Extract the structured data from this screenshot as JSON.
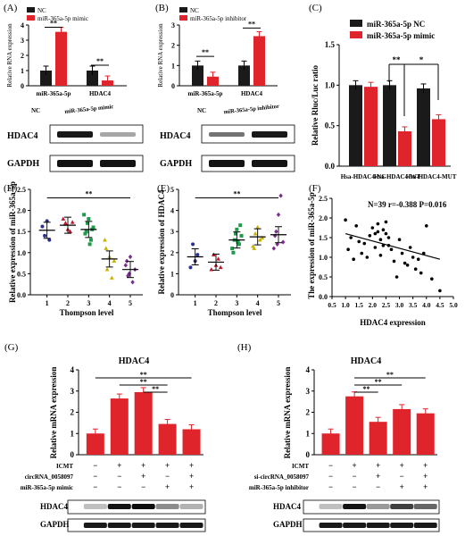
{
  "colors": {
    "nc": "#1a1a1a",
    "red": "#e0242b",
    "scatter": "#000000",
    "line": "#000000",
    "gapdh": "#222222"
  },
  "panel_labels": [
    "(A)",
    "(B)",
    "(C)",
    "(D)",
    "(E)",
    "(F)",
    "(G)",
    "(H)"
  ],
  "wb_labels": {
    "hdac4": "HDAC4",
    "gapdh": "GAPDH",
    "nc": "NC",
    "mimic": "miR-365a-5p mimic",
    "inhibitor": "miR-365a-5p inhibitor"
  },
  "sig": {
    "two": "**",
    "one": "*"
  },
  "chart_data": [
    {
      "id": "A",
      "type": "bar",
      "ylabel": "Relative RNA expression",
      "ylim": [
        0,
        4
      ],
      "yticks": [
        0,
        1,
        2,
        3,
        4
      ],
      "categories": [
        "miR-365a-5p",
        "HDAC4"
      ],
      "series": [
        {
          "name": "NC",
          "values": [
            1.0,
            1.0
          ]
        },
        {
          "name": "miR-365a-5p mimic",
          "values": [
            3.55,
            0.35
          ]
        }
      ]
    },
    {
      "id": "B",
      "type": "bar",
      "ylabel": "Relative RNA expression",
      "ylim": [
        0,
        3
      ],
      "yticks": [
        0,
        1,
        2,
        3
      ],
      "categories": [
        "miR-365a-5p",
        "HDAC4"
      ],
      "series": [
        {
          "name": "NC",
          "values": [
            1.0,
            1.0
          ]
        },
        {
          "name": "miR-365a-5p inhibitor",
          "values": [
            0.45,
            2.45
          ]
        }
      ]
    },
    {
      "id": "C",
      "type": "bar",
      "ylabel": "Relative Rluc/Luc ratio",
      "ylim": [
        0,
        1.5
      ],
      "yticks": [
        "0.0",
        "0.5",
        "1.0",
        "1.5"
      ],
      "categories": [
        "Hsa-HDAC4-NC",
        "Hsa-HDAC4-WT",
        "Hsa-HDAC4-MUT"
      ],
      "series": [
        {
          "name": "miR-365a-5p NC",
          "values": [
            1.0,
            1.0,
            0.96
          ]
        },
        {
          "name": "miR-365a-5p mimic",
          "values": [
            0.98,
            0.43,
            0.58
          ]
        }
      ]
    },
    {
      "id": "D",
      "type": "scatter",
      "ylabel": "Relative  expression of miR-365a-5p",
      "xlabel": "Thompson level",
      "ylim": [
        0,
        2.5
      ],
      "yticks": [
        "0.0",
        "0.5",
        "1.0",
        "1.5",
        "2.0",
        "2.5"
      ],
      "categories": [
        "1",
        "2",
        "3",
        "4",
        "5"
      ],
      "means": [
        1.53,
        1.65,
        1.55,
        0.85,
        0.6
      ],
      "points": [
        [
          1.62,
          1.4,
          1.75,
          1.3
        ],
        [
          1.8,
          1.7,
          1.55,
          1.5,
          1.72
        ],
        [
          1.9,
          1.5,
          1.8,
          1.3,
          1.6,
          1.45,
          1.7,
          1.2,
          1.55
        ],
        [
          1.3,
          0.6,
          0.9,
          0.4,
          0.8,
          1.1
        ],
        [
          0.7,
          0.45,
          0.9,
          0.3,
          0.6,
          0.8,
          0.5
        ]
      ]
    },
    {
      "id": "E",
      "type": "scatter",
      "ylabel": "Relative  expression of HDAC4",
      "xlabel": "Thompson level",
      "ylim": [
        0,
        5
      ],
      "yticks": [
        0,
        1,
        2,
        3,
        4,
        5
      ],
      "categories": [
        "1",
        "2",
        "3",
        "4",
        "5"
      ],
      "means": [
        1.8,
        1.55,
        2.6,
        2.75,
        2.85
      ],
      "points": [
        [
          1.3,
          2.4,
          1.6,
          1.9
        ],
        [
          1.2,
          1.9,
          1.4,
          1.7,
          1.3
        ],
        [
          2.2,
          2.6,
          3.1,
          2.4,
          2.8,
          2.0,
          2.9,
          2.5,
          3.3
        ],
        [
          2.3,
          2.9,
          3.2,
          2.6,
          2.7,
          2.2
        ],
        [
          2.2,
          3.0,
          3.8,
          4.7,
          2.5,
          2.8,
          2.4
        ]
      ]
    },
    {
      "id": "F",
      "type": "scatter",
      "ylabel": "The expression of miR-365a-5p",
      "xlabel": "HDAC4 expression",
      "annotation": "N=39 r=-0.388 P=0.016",
      "xlim": [
        0.5,
        5.0
      ],
      "ylim": [
        0,
        2.5
      ],
      "xticks": [
        "0.5",
        "1.0",
        "1.5",
        "2.0",
        "2.5",
        "3.0",
        "3.5",
        "4.0",
        "4.5",
        "5.0"
      ],
      "yticks": [
        "0.0",
        "0.5",
        "1.0",
        "1.5",
        "2.0",
        "2.5"
      ],
      "x": [
        1.0,
        1.1,
        1.2,
        1.4,
        1.6,
        1.7,
        1.9,
        2.0,
        2.1,
        2.1,
        2.2,
        2.3,
        2.3,
        2.4,
        2.4,
        2.5,
        2.5,
        2.6,
        2.7,
        2.8,
        3.0,
        3.1,
        3.2,
        3.4,
        3.5,
        3.6,
        3.7,
        3.9,
        4.0,
        4.2,
        4.5,
        1.5,
        1.8,
        2.2,
        2.6,
        3.3,
        3.8,
        2.9,
        1.3
      ],
      "y": [
        1.95,
        1.2,
        1.5,
        1.8,
        1.1,
        1.35,
        1.55,
        1.75,
        1.25,
        1.6,
        1.85,
        1.45,
        1.05,
        1.7,
        1.3,
        1.9,
        1.6,
        1.5,
        1.2,
        0.9,
        1.45,
        1.1,
        0.85,
        1.25,
        1.0,
        0.7,
        0.95,
        1.1,
        1.8,
        0.45,
        0.15,
        1.4,
        1.0,
        1.65,
        1.3,
        0.8,
        0.6,
        0.5,
        0.95
      ],
      "fit": [
        [
          1.0,
          1.6
        ],
        [
          4.5,
          0.95
        ]
      ]
    },
    {
      "id": "G",
      "type": "bar",
      "title": "HDAC4",
      "ylabel": "Relative mRNA expression",
      "ylim": [
        0,
        4
      ],
      "yticks": [
        0,
        1,
        2,
        3,
        4
      ],
      "values": [
        1.0,
        2.65,
        2.95,
        1.45,
        1.2
      ],
      "conditions": [
        {
          "label": "ICMT",
          "marks": [
            "−",
            "+",
            "+",
            "+",
            "+"
          ]
        },
        {
          "label": "circRNA_0058097",
          "marks": [
            "−",
            "−",
            "+",
            "−",
            "+"
          ]
        },
        {
          "label": "miR-365a-5p mimic",
          "marks": [
            "−",
            "−",
            "−",
            "+",
            "+"
          ]
        }
      ]
    },
    {
      "id": "H",
      "type": "bar",
      "title": "HDAC4",
      "ylabel": "Relative mRNA expression",
      "ylim": [
        0,
        4
      ],
      "yticks": [
        0,
        1,
        2,
        3,
        4
      ],
      "values": [
        1.0,
        2.75,
        1.55,
        2.15,
        1.95
      ],
      "conditions": [
        {
          "label": "ICMT",
          "marks": [
            "−",
            "+",
            "+",
            "+",
            "+"
          ]
        },
        {
          "label": "si-circRNA_0058097",
          "marks": [
            "−",
            "−",
            "+",
            "−",
            "+"
          ]
        },
        {
          "label": "miR-365a-5p inhibitor",
          "marks": [
            "−",
            "−",
            "−",
            "+",
            "+"
          ]
        }
      ]
    }
  ]
}
